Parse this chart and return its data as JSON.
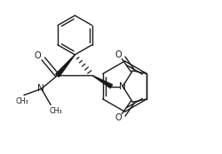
{
  "background": "#ffffff",
  "lc": "#1a1a1a",
  "lw": 1.0,
  "figsize": [
    2.5,
    1.74
  ],
  "dpi": 100,
  "xlim": [
    0.0,
    10.0
  ],
  "ylim": [
    0.0,
    7.0
  ]
}
